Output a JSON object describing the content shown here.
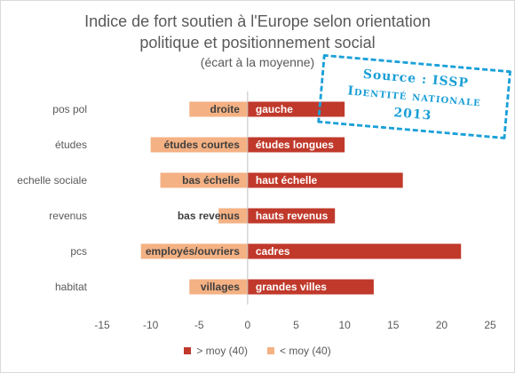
{
  "chart_data": {
    "type": "bar",
    "orientation": "horizontal",
    "title_lines": [
      "Indice de fort soutien à l'Europe selon orientation",
      "politique et positionnement social"
    ],
    "subtitle": "(écart à la moyenne)",
    "categories": [
      "pos pol",
      "études",
      "echelle sociale",
      "revenus",
      "pcs",
      "habitat"
    ],
    "series": [
      {
        "name": "> moy (40)",
        "color": "#c0392b",
        "values": [
          10,
          10,
          16,
          9,
          22,
          13
        ],
        "labels": [
          "gauche",
          "études longues",
          "haut échelle",
          "hauts revenus",
          "cadres",
          "grandes villes"
        ]
      },
      {
        "name": "< moy (40)",
        "color": "#f4b183",
        "values": [
          -6,
          -10,
          -9,
          -3,
          -11,
          -6
        ],
        "labels": [
          "droite",
          "études courtes",
          "bas échelle",
          "bas revenus",
          "employés/ouvriers",
          "villages"
        ]
      }
    ],
    "xlim": [
      -15,
      25
    ],
    "xticks": [
      -15,
      -10,
      -5,
      0,
      5,
      10,
      15,
      20,
      25
    ],
    "grid": false,
    "legend_position": "bottom",
    "annotation": {
      "lines": [
        "Source : ISSP",
        "Identité nationale",
        "2013"
      ]
    }
  }
}
